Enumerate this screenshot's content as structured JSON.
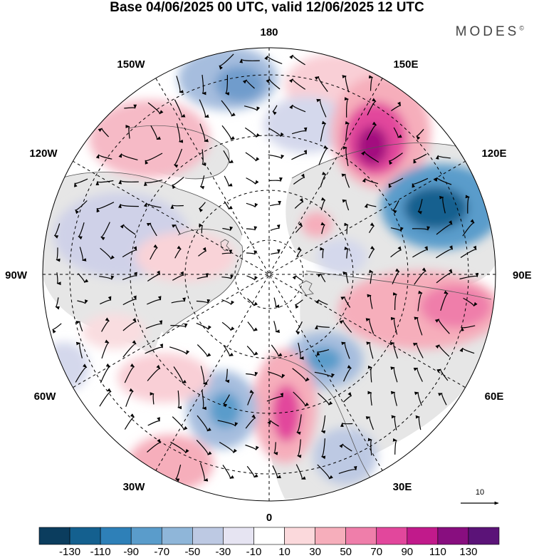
{
  "title": "Base 04/06/2025 00 UTC, valid 12/06/2025 12 UTC",
  "brand": "MODES",
  "brand_mark": "©",
  "longitude_labels": [
    "180",
    "150E",
    "120E",
    "90E",
    "60E",
    "30E",
    "0",
    "30W",
    "60W",
    "90W",
    "120W",
    "150W"
  ],
  "reference_vector_label": "10",
  "colorbar": {
    "colors": [
      "#0b3d5e",
      "#14608f",
      "#2e80b8",
      "#5a9ccb",
      "#8fb6d9",
      "#bdc9e3",
      "#e6e4f2",
      "#ffffff",
      "#fbd9dc",
      "#f6aebb",
      "#ef7eaa",
      "#e2479c",
      "#c11a8b",
      "#880e7f",
      "#5b1378"
    ],
    "tick_labels": [
      "-130",
      "-110",
      "-90",
      "-70",
      "-50",
      "-30",
      "-10",
      "10",
      "30",
      "50",
      "70",
      "90",
      "110",
      "130"
    ]
  },
  "colors": {
    "land_shading": "#e8e8e8",
    "coastline": "#555555",
    "grid": "#000000"
  }
}
